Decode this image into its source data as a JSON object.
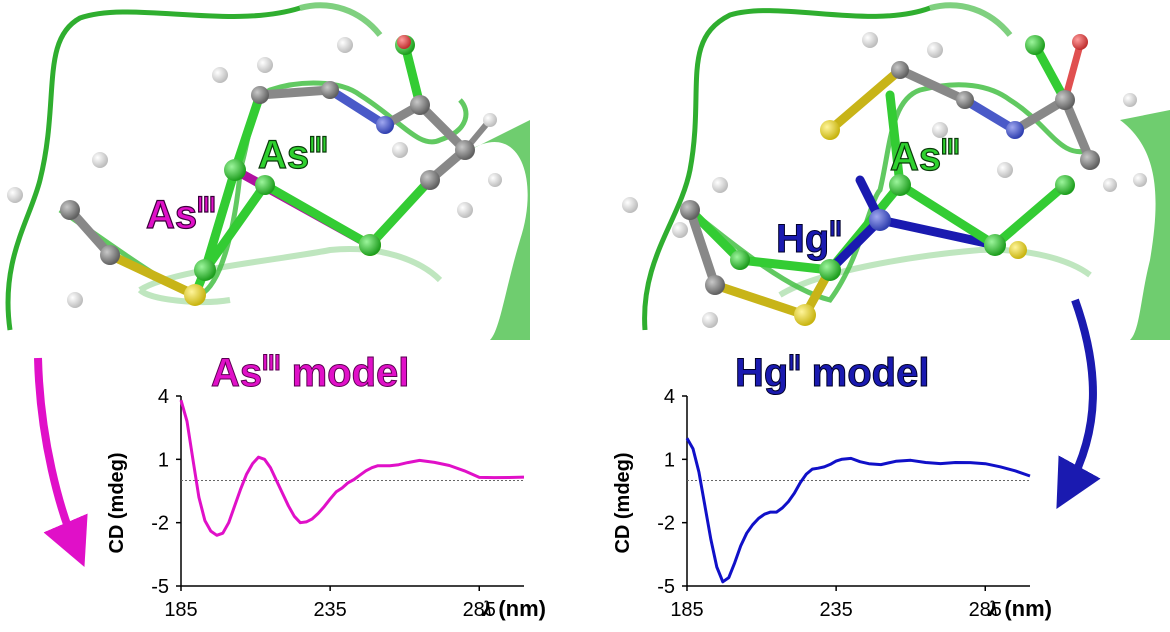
{
  "panels": [
    {
      "heading": "As",
      "heading_sup": "III",
      "heading_tail": " model",
      "heading_color": "#e010c8",
      "labels": [
        {
          "base": "As",
          "sup": "III",
          "color": "#2fd12f"
        },
        {
          "base": "As",
          "sup": "III",
          "color": "#e010c8"
        }
      ]
    },
    {
      "heading": "Hg",
      "heading_sup": "II",
      "heading_tail": " model",
      "heading_color": "#1a1ab0",
      "labels": [
        {
          "base": "As",
          "sup": "III",
          "color": "#2fd12f"
        },
        {
          "base": "Hg",
          "sup": "II",
          "color": "#1a1ab0"
        }
      ]
    }
  ],
  "colors": {
    "ribbon": "#3fbf3f",
    "ribbon_light": "#9fdf9f",
    "bond": "#33cc33",
    "sulfur": "#d8c818",
    "carbon": "#808080",
    "hydrogen": "#f2f2f2",
    "oxygen": "#e05050",
    "nitrogen": "#4a5ac8",
    "hg_bond": "#1a1ab0",
    "as_bond": "#b010a0"
  },
  "chart_data": [
    {
      "type": "line",
      "title": "",
      "xlabel_symbol": "λ",
      "xlabel_unit": " (nm)",
      "ylabel": "CD (mdeg)",
      "xlim": [
        185,
        300
      ],
      "ylim": [
        -5,
        4
      ],
      "xticks": [
        185,
        235,
        285
      ],
      "yticks": [
        4,
        1,
        -2,
        -5
      ],
      "reference_line": 0,
      "series": [
        {
          "color": "#e010c8",
          "x": [
            185,
            187,
            189,
            191,
            193,
            195,
            197,
            199,
            201,
            203,
            205,
            207,
            209,
            211,
            213,
            215,
            217,
            219,
            221,
            223,
            225,
            227,
            229,
            231,
            233,
            235,
            237,
            239,
            241,
            243,
            245,
            247,
            249,
            251,
            253,
            255,
            258,
            261,
            265,
            270,
            275,
            280,
            285,
            290,
            295,
            300
          ],
          "y": [
            3.8,
            2.8,
            1.0,
            -0.8,
            -1.9,
            -2.4,
            -2.6,
            -2.5,
            -2.0,
            -1.2,
            -0.4,
            0.3,
            0.8,
            1.1,
            1.0,
            0.6,
            0.0,
            -0.6,
            -1.2,
            -1.7,
            -2.0,
            -2.0,
            -1.8,
            -1.5,
            -1.2,
            -0.9,
            -0.6,
            -0.4,
            -0.1,
            0.1,
            0.3,
            0.45,
            0.55,
            0.65,
            0.7,
            0.75,
            0.8,
            0.85,
            0.9,
            0.8,
            0.7,
            0.5,
            0.2,
            0.15,
            0.1,
            0.1
          ]
        }
      ]
    },
    {
      "type": "line",
      "title": "",
      "xlabel_symbol": "λ",
      "xlabel_unit": " (nm)",
      "ylabel": "CD (mdeg)",
      "xlim": [
        185,
        300
      ],
      "ylim": [
        -5,
        4
      ],
      "xticks": [
        185,
        235,
        285
      ],
      "yticks": [
        4,
        1,
        -2,
        -5
      ],
      "reference_line": 0,
      "series": [
        {
          "color": "#1010c8",
          "x": [
            185,
            187,
            189,
            191,
            193,
            195,
            197,
            199,
            201,
            203,
            205,
            207,
            209,
            211,
            213,
            215,
            217,
            219,
            221,
            223,
            225,
            227,
            229,
            231,
            233,
            235,
            237,
            240,
            243,
            246,
            250,
            255,
            260,
            265,
            270,
            275,
            280,
            285,
            290,
            295,
            300
          ],
          "y": [
            2.0,
            1.5,
            0.4,
            -1.2,
            -2.8,
            -4.1,
            -4.8,
            -4.6,
            -3.9,
            -3.1,
            -2.5,
            -2.1,
            -1.8,
            -1.6,
            -1.5,
            -1.5,
            -1.3,
            -1.0,
            -0.6,
            -0.1,
            0.3,
            0.5,
            0.6,
            0.7,
            0.8,
            0.9,
            0.95,
            1.0,
            0.9,
            0.85,
            0.8,
            0.9,
            0.9,
            0.8,
            0.8,
            0.9,
            0.9,
            0.8,
            0.6,
            0.4,
            0.2
          ]
        }
      ]
    }
  ]
}
